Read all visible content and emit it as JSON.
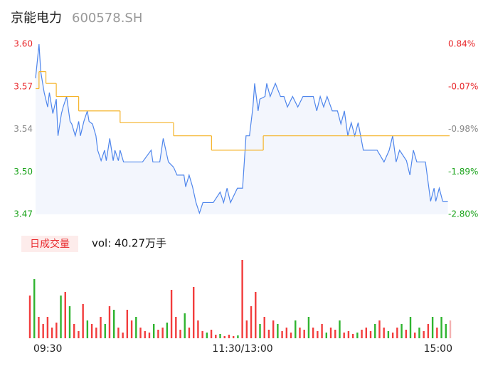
{
  "header": {
    "name": "京能电力",
    "code": "600578.SH"
  },
  "chart_data": [
    {
      "type": "line",
      "xlim": [
        0,
        240
      ],
      "xticks": [
        {
          "value": 0,
          "label": "09:30"
        },
        {
          "value": 120,
          "label": "11:30/13:00"
        },
        {
          "value": 240,
          "label": "15:00"
        }
      ],
      "ylim": [
        3.47,
        3.6
      ],
      "yticks": [
        3.47,
        {
          "value": 3.5025,
          "label": "3.50"
        },
        {
          "value": 3.535,
          "label": "3.54"
        },
        {
          "value": 3.5675,
          "label": "3.57"
        },
        {
          "value": 3.6,
          "label": "3.60"
        }
      ],
      "ytick_colors": [
        "#1aa31a",
        "#1aa31a",
        "#888888",
        "#e8262a",
        "#e8262a"
      ],
      "y2lim": [
        -2.8,
        0.84
      ],
      "y2ticks": [
        {
          "value": -2.8,
          "label": "-2.80%"
        },
        {
          "value": -1.89,
          "label": "-1.89%"
        },
        {
          "value": -0.98,
          "label": "-0.98%"
        },
        {
          "value": -0.07,
          "label": "-0.07%"
        },
        {
          "value": 0.84,
          "label": "0.84%"
        }
      ],
      "series": [
        {
          "color": "#4f86ec",
          "fill": "#f3f6fd",
          "x": [
            0,
            2,
            3,
            5,
            7,
            8,
            10,
            12,
            13,
            15,
            16,
            18,
            20,
            21,
            23,
            25,
            26,
            28,
            30,
            31,
            33,
            35,
            36,
            38,
            40,
            41,
            43,
            45,
            46,
            48,
            49,
            51,
            56,
            62,
            67,
            68,
            72,
            74,
            77,
            80,
            82,
            86,
            87,
            89,
            91,
            93,
            95,
            97,
            103,
            107,
            109,
            111,
            113,
            117,
            120,
            122,
            124,
            126,
            127,
            129,
            130,
            133,
            134,
            136,
            139,
            142,
            144,
            146,
            149,
            152,
            155,
            161,
            163,
            165,
            167,
            169,
            172,
            175,
            177,
            179,
            181,
            183,
            185,
            187,
            190,
            198,
            202,
            205,
            207,
            209,
            211,
            215,
            217,
            219,
            221,
            226,
            228,
            229,
            231,
            232,
            234,
            236,
            239
          ],
          "values": [
            3.574,
            3.6,
            3.579,
            3.563,
            3.552,
            3.563,
            3.547,
            3.558,
            3.53,
            3.547,
            3.552,
            3.56,
            3.541,
            3.539,
            3.53,
            3.541,
            3.53,
            3.541,
            3.549,
            3.541,
            3.539,
            3.53,
            3.519,
            3.511,
            3.519,
            3.511,
            3.528,
            3.511,
            3.519,
            3.511,
            3.519,
            3.51,
            3.51,
            3.51,
            3.519,
            3.51,
            3.51,
            3.528,
            3.51,
            3.506,
            3.5,
            3.5,
            3.491,
            3.5,
            3.491,
            3.479,
            3.471,
            3.479,
            3.479,
            3.487,
            3.479,
            3.49,
            3.479,
            3.49,
            3.49,
            3.53,
            3.53,
            3.552,
            3.57,
            3.549,
            3.558,
            3.56,
            3.57,
            3.56,
            3.57,
            3.56,
            3.56,
            3.552,
            3.56,
            3.552,
            3.56,
            3.56,
            3.549,
            3.56,
            3.552,
            3.56,
            3.549,
            3.549,
            3.539,
            3.549,
            3.53,
            3.54,
            3.53,
            3.54,
            3.519,
            3.519,
            3.51,
            3.519,
            3.53,
            3.51,
            3.519,
            3.511,
            3.5,
            3.519,
            3.51,
            3.51,
            3.49,
            3.48,
            3.49,
            3.48,
            3.49,
            3.48,
            3.48
          ]
        },
        {
          "color": "#f5b328",
          "x": [
            0,
            2,
            6,
            12,
            25,
            49,
            80,
            102,
            132
          ],
          "values": [
            3.566,
            3.579,
            3.57,
            3.56,
            3.549,
            3.54,
            3.53,
            3.519,
            3.53
          ]
        }
      ]
    },
    {
      "type": "bar",
      "label": "日成交量",
      "volume_label": "vol: 40.27万手",
      "ylim": [
        0,
        110
      ],
      "values": [
        60,
        83,
        30,
        20,
        30,
        15,
        22,
        60,
        65,
        45,
        20,
        10,
        48,
        25,
        20,
        15,
        30,
        20,
        45,
        40,
        15,
        8,
        40,
        25,
        30,
        15,
        10,
        8,
        20,
        12,
        15,
        22,
        68,
        30,
        12,
        35,
        15,
        72,
        25,
        10,
        8,
        12,
        5,
        6,
        3,
        5,
        3,
        4,
        110,
        25,
        45,
        65,
        20,
        30,
        12,
        25,
        20,
        10,
        15,
        8,
        25,
        15,
        12,
        30,
        15,
        10,
        20,
        8,
        15,
        12,
        25,
        8,
        10,
        6,
        8,
        12,
        15,
        10,
        20,
        25,
        15,
        10,
        8,
        15,
        20,
        12,
        30,
        8,
        15,
        10,
        20,
        30,
        15,
        30,
        20,
        25
      ],
      "colors": [
        "#f23c3c",
        "#2fb42f",
        "#f23c3c",
        "#f23c3c",
        "#f23c3c",
        "#f23c3c",
        "#f23c3c",
        "#2fb42f",
        "#f23c3c",
        "#2fb42f",
        "#f23c3c",
        "#f23c3c",
        "#f23c3c",
        "#2fb42f",
        "#f23c3c",
        "#f23c3c",
        "#f23c3c",
        "#2fb42f",
        "#f23c3c",
        "#2fb42f",
        "#f23c3c",
        "#f23c3c",
        "#f23c3c",
        "#f23c3c",
        "#2fb42f",
        "#f23c3c",
        "#f23c3c",
        "#f23c3c",
        "#2fb42f",
        "#f23c3c",
        "#f23c3c",
        "#2fb42f",
        "#f23c3c",
        "#f23c3c",
        "#f23c3c",
        "#2fb42f",
        "#f23c3c",
        "#f23c3c",
        "#f23c3c",
        "#f23c3c",
        "#2fb42f",
        "#f23c3c",
        "#f23c3c",
        "#2fb42f",
        "#f23c3c",
        "#f23c3c",
        "#f23c3c",
        "#2fb42f",
        "#f23c3c",
        "#f23c3c",
        "#f23c3c",
        "#f23c3c",
        "#2fb42f",
        "#f23c3c",
        "#f23c3c",
        "#f23c3c",
        "#2fb42f",
        "#f23c3c",
        "#f23c3c",
        "#f23c3c",
        "#2fb42f",
        "#f23c3c",
        "#f23c3c",
        "#2fb42f",
        "#f23c3c",
        "#f23c3c",
        "#f23c3c",
        "#2fb42f",
        "#f23c3c",
        "#f23c3c",
        "#2fb42f",
        "#f23c3c",
        "#f23c3c",
        "#f23c3c",
        "#2fb42f",
        "#f23c3c",
        "#f23c3c",
        "#f23c3c",
        "#2fb42f",
        "#f23c3c",
        "#f23c3c",
        "#2fb42f",
        "#f23c3c",
        "#f23c3c",
        "#2fb42f",
        "#f23c3c",
        "#2fb42f",
        "#f23c3c",
        "#2fb42f",
        "#f23c3c",
        "#f23c3c",
        "#2fb42f",
        "#f23c3c",
        "#2fb42f",
        "#2fb42f",
        "#f4b0b0"
      ]
    }
  ]
}
